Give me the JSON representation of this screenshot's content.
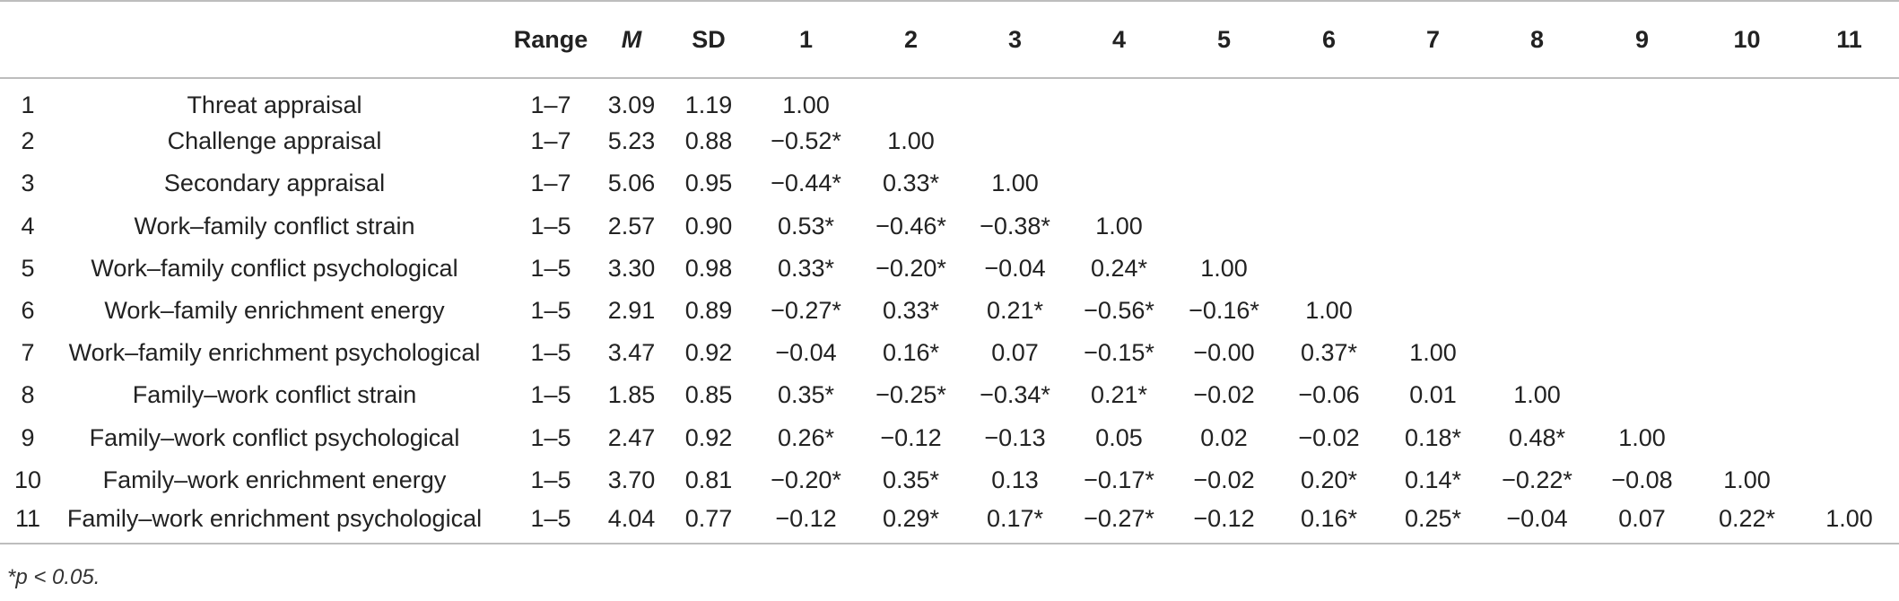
{
  "table": {
    "headers": [
      "Range",
      "M",
      "SD",
      "1",
      "2",
      "3",
      "4",
      "5",
      "6",
      "7",
      "8",
      "9",
      "10",
      "11"
    ],
    "rows": [
      {
        "num": "1",
        "variable": "Threat appraisal",
        "range": "1–7",
        "m": "3.09",
        "sd": "1.19",
        "r": [
          "1.00",
          "",
          "",
          "",
          "",
          "",
          "",
          "",
          "",
          "",
          ""
        ]
      },
      {
        "num": "2",
        "variable": "Challenge appraisal",
        "range": "1–7",
        "m": "5.23",
        "sd": "0.88",
        "r": [
          "−0.52*",
          "1.00",
          "",
          "",
          "",
          "",
          "",
          "",
          "",
          "",
          ""
        ]
      },
      {
        "num": "3",
        "variable": "Secondary appraisal",
        "range": "1–7",
        "m": "5.06",
        "sd": "0.95",
        "r": [
          "−0.44*",
          "0.33*",
          "1.00",
          "",
          "",
          "",
          "",
          "",
          "",
          "",
          ""
        ]
      },
      {
        "num": "4",
        "variable": "Work–family conflict strain",
        "range": "1–5",
        "m": "2.57",
        "sd": "0.90",
        "r": [
          "0.53*",
          "−0.46*",
          "−0.38*",
          "1.00",
          "",
          "",
          "",
          "",
          "",
          "",
          ""
        ]
      },
      {
        "num": "5",
        "variable": "Work–family conflict psychological",
        "range": "1–5",
        "m": "3.30",
        "sd": "0.98",
        "r": [
          "0.33*",
          "−0.20*",
          "−0.04",
          "0.24*",
          "1.00",
          "",
          "",
          "",
          "",
          "",
          ""
        ]
      },
      {
        "num": "6",
        "variable": "Work–family enrichment energy",
        "range": "1–5",
        "m": "2.91",
        "sd": "0.89",
        "r": [
          "−0.27*",
          "0.33*",
          "0.21*",
          "−0.56*",
          "−0.16*",
          "1.00",
          "",
          "",
          "",
          "",
          ""
        ]
      },
      {
        "num": "7",
        "variable": "Work–family enrichment psychological",
        "range": "1–5",
        "m": "3.47",
        "sd": "0.92",
        "r": [
          "−0.04",
          "0.16*",
          "0.07",
          "−0.15*",
          "−0.00",
          "0.37*",
          "1.00",
          "",
          "",
          "",
          ""
        ]
      },
      {
        "num": "8",
        "variable": "Family–work conflict strain",
        "range": "1–5",
        "m": "1.85",
        "sd": "0.85",
        "r": [
          "0.35*",
          "−0.25*",
          "−0.34*",
          "0.21*",
          "−0.02",
          "−0.06",
          "0.01",
          "1.00",
          "",
          "",
          ""
        ]
      },
      {
        "num": "9",
        "variable": "Family–work conflict psychological",
        "range": "1–5",
        "m": "2.47",
        "sd": "0.92",
        "r": [
          "0.26*",
          "−0.12",
          "−0.13",
          "0.05",
          "0.02",
          "−0.02",
          "0.18*",
          "0.48*",
          "1.00",
          "",
          ""
        ]
      },
      {
        "num": "10",
        "variable": "Family–work enrichment energy",
        "range": "1–5",
        "m": "3.70",
        "sd": "0.81",
        "r": [
          "−0.20*",
          "0.35*",
          "0.13",
          "−0.17*",
          "−0.02",
          "0.20*",
          "0.14*",
          "−0.22*",
          "−0.08",
          "1.00",
          ""
        ]
      },
      {
        "num": "11",
        "variable": "Family–work enrichment psychological",
        "range": "1–5",
        "m": "4.04",
        "sd": "0.77",
        "r": [
          "−0.12",
          "0.29*",
          "0.17*",
          "−0.27*",
          "−0.12",
          "0.16*",
          "0.25*",
          "−0.04",
          "0.07",
          "0.22*",
          "1.00"
        ]
      }
    ],
    "note": "*p < 0.05."
  }
}
